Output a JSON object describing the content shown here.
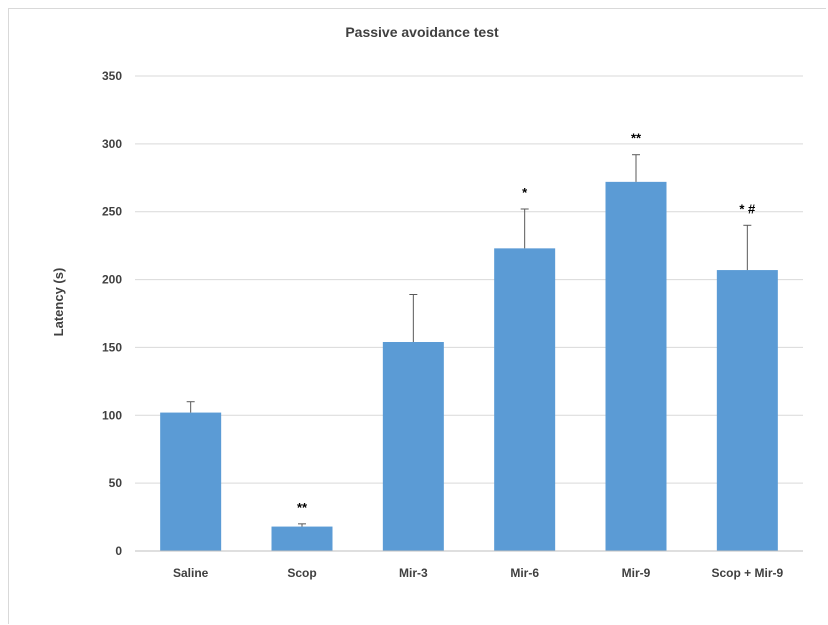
{
  "chart_data": {
    "type": "bar",
    "title": "Passive avoidance test",
    "xlabel": "",
    "ylabel": "Latency (s)",
    "ylim": [
      0,
      350
    ],
    "yticks": [
      0,
      50,
      100,
      150,
      200,
      250,
      300,
      350
    ],
    "categories": [
      "Saline",
      "Scop",
      "Mir-3",
      "Mir-6",
      "Mir-9",
      "Scop + Mir-9"
    ],
    "values": [
      102,
      18,
      154,
      223,
      272,
      207
    ],
    "errors": [
      8,
      2,
      35,
      29,
      20,
      33
    ],
    "annotations": [
      "",
      "**",
      "",
      "*",
      "**",
      "* #"
    ],
    "grid": true,
    "legend": "none",
    "bar_color": "#5b9bd5"
  }
}
